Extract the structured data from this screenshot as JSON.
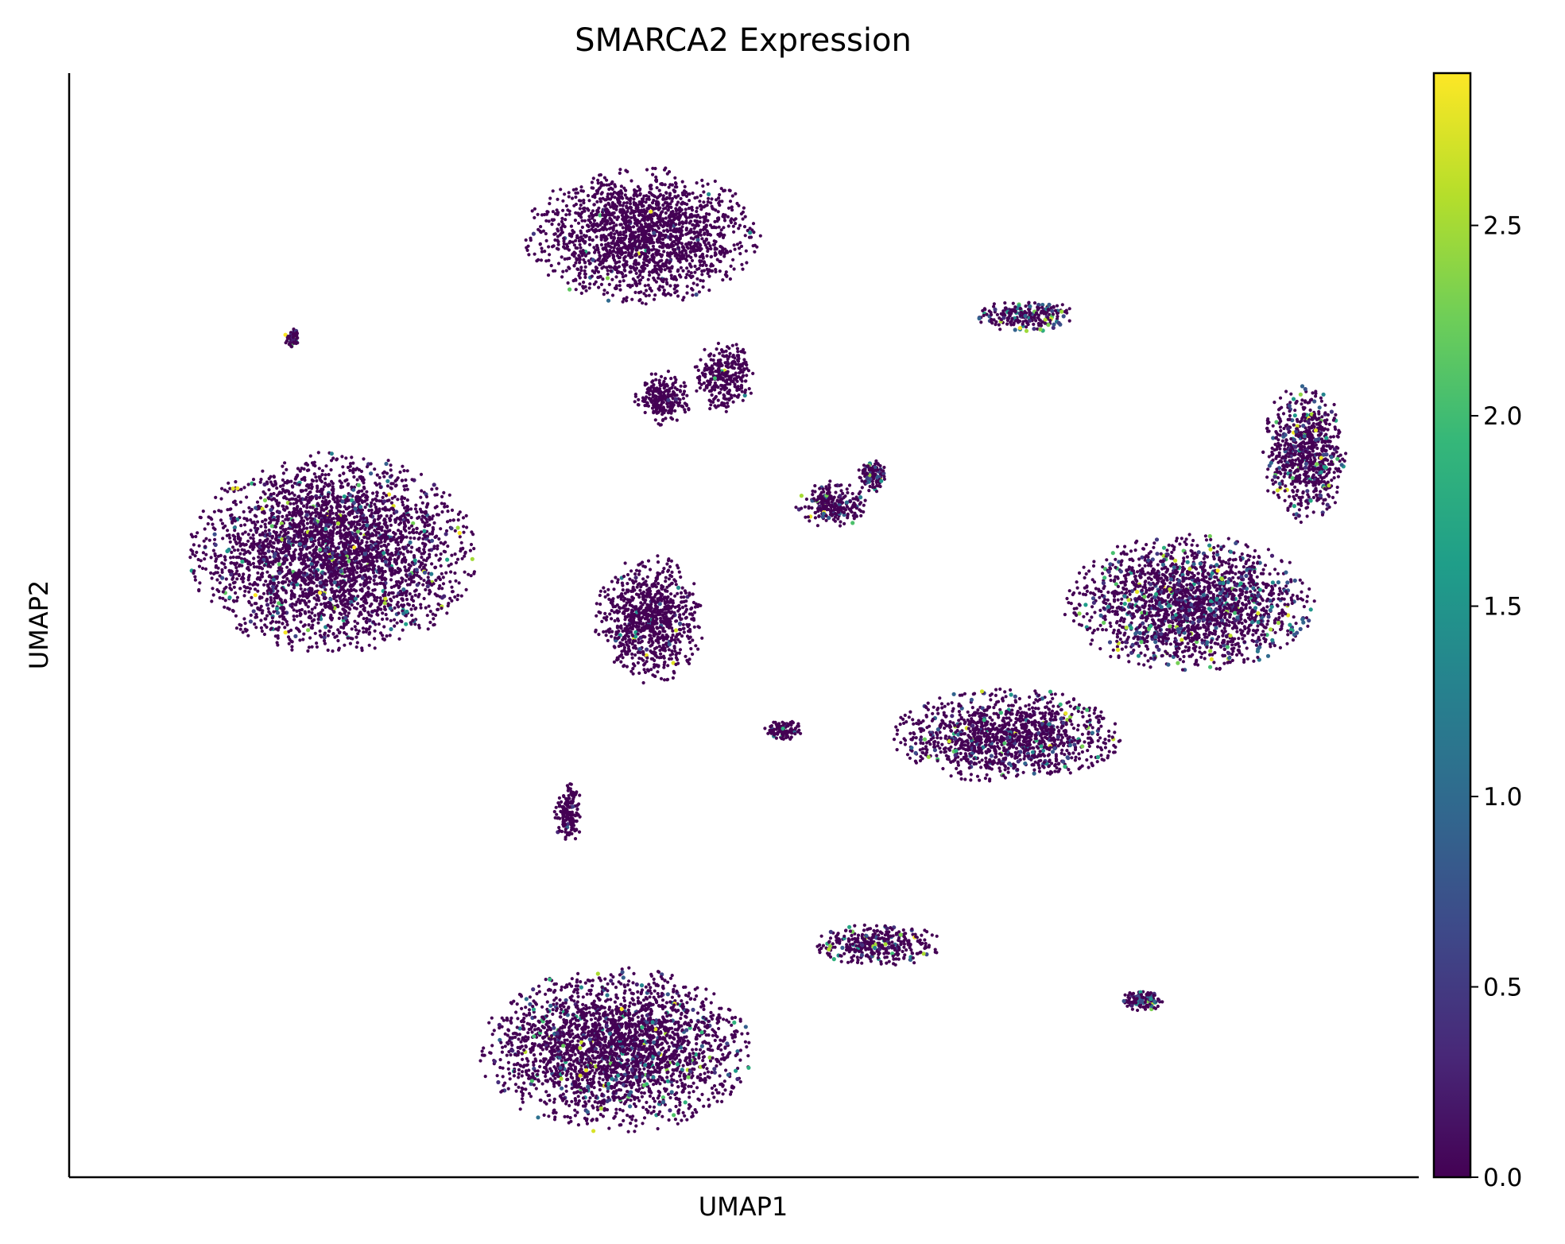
{
  "chart_data": {
    "type": "scatter",
    "title": "SMARCA2 Expression",
    "xlabel": "UMAP1",
    "ylabel": "UMAP2",
    "xlim": [
      0,
      100
    ],
    "ylim": [
      0,
      100
    ],
    "grid": false,
    "legend": "none",
    "colorbar": {
      "label": "",
      "vmin": 0.0,
      "vmax": 2.9,
      "ticks": [
        0.0,
        0.5,
        1.0,
        1.5,
        2.0,
        2.5
      ],
      "tick_labels": [
        "0.0",
        "0.5",
        "1.0",
        "1.5",
        "2.0",
        "2.5"
      ],
      "colormap": "viridis",
      "colors": [
        "#440154",
        "#482878",
        "#3e4989",
        "#31688e",
        "#26828e",
        "#1f9e89",
        "#35b779",
        "#6ece58",
        "#b5de2b",
        "#fde725"
      ]
    },
    "clusters": [
      {
        "center": [
          42.5,
          85.3
        ],
        "spread": [
          8.2,
          5.8
        ],
        "expression_mean": 0.05
      },
      {
        "center": [
          44.0,
          70.5
        ],
        "spread": [
          2.0,
          2.4
        ],
        "expression_mean": 0.05
      },
      {
        "center": [
          48.5,
          72.5
        ],
        "spread": [
          2.2,
          3.0
        ],
        "expression_mean": 0.1
      },
      {
        "center": [
          19.5,
          56.5
        ],
        "spread": [
          10.0,
          8.6
        ],
        "expression_mean": 0.25
      },
      {
        "center": [
          16.5,
          76.0
        ],
        "spread": [
          0.5,
          0.8
        ],
        "expression_mean": 0.6
      },
      {
        "center": [
          56.5,
          61.0
        ],
        "spread": [
          2.5,
          2.0
        ],
        "expression_mean": 0.4
      },
      {
        "center": [
          59.5,
          63.5
        ],
        "spread": [
          1.0,
          1.4
        ],
        "expression_mean": 0.5
      },
      {
        "center": [
          43.0,
          50.5
        ],
        "spread": [
          3.8,
          5.5
        ],
        "expression_mean": 0.1
      },
      {
        "center": [
          53.0,
          40.5
        ],
        "spread": [
          1.4,
          0.8
        ],
        "expression_mean": 0.1
      },
      {
        "center": [
          71.0,
          78.0
        ],
        "spread": [
          3.5,
          1.4
        ],
        "expression_mean": 0.7
      },
      {
        "center": [
          91.5,
          65.5
        ],
        "spread": [
          3.0,
          6.0
        ],
        "expression_mean": 0.5
      },
      {
        "center": [
          83.0,
          52.0
        ],
        "spread": [
          8.8,
          5.8
        ],
        "expression_mean": 0.5
      },
      {
        "center": [
          69.5,
          40.0
        ],
        "spread": [
          8.0,
          4.0
        ],
        "expression_mean": 0.35
      },
      {
        "center": [
          40.5,
          11.5
        ],
        "spread": [
          9.5,
          7.0
        ],
        "expression_mean": 0.3
      },
      {
        "center": [
          60.0,
          21.0
        ],
        "spread": [
          4.5,
          1.8
        ],
        "expression_mean": 0.35
      },
      {
        "center": [
          79.5,
          16.0
        ],
        "spread": [
          1.5,
          0.9
        ],
        "expression_mean": 0.8
      },
      {
        "center": [
          37.0,
          33.0
        ],
        "spread": [
          1.0,
          2.5
        ],
        "expression_mean": 0.1
      }
    ]
  }
}
